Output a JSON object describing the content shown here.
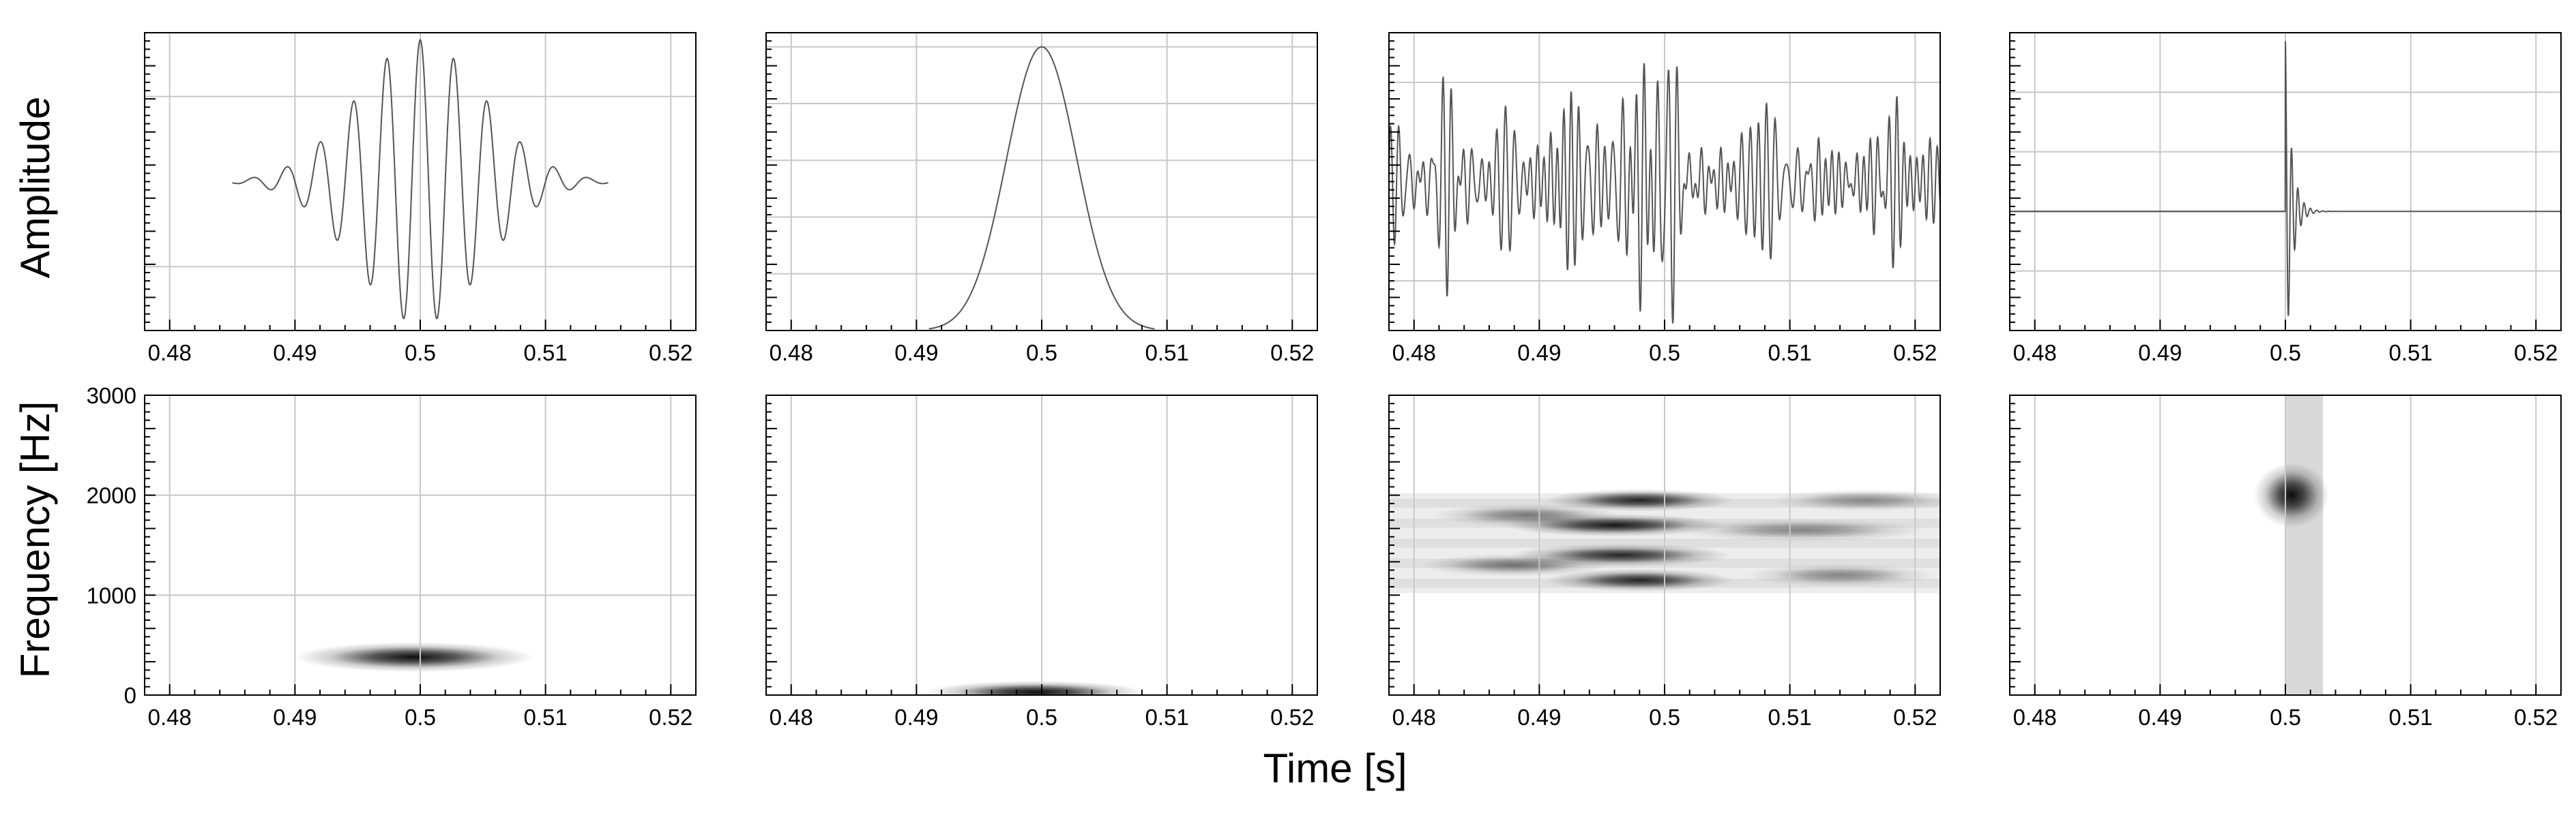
{
  "figure": {
    "ylabel_top": "Amplitude",
    "ylabel_bottom": "Frequency [Hz]",
    "xlabel": "Time [s]"
  },
  "chart_data": [
    {
      "type": "line",
      "row": "top",
      "panel": 1,
      "signal": "gabor",
      "xlabel": "",
      "ylabel": "Amplitude",
      "xlim": [
        0.478,
        0.522
      ],
      "ylim": [
        -1.05,
        1.05
      ],
      "xticks": [
        0.48,
        0.49,
        0.5,
        0.51,
        0.52
      ],
      "xtick_labels": [
        "0.48",
        "0.49",
        "0.5",
        "0.51",
        "0.52"
      ],
      "gridlines_y": [
        -0.6,
        0.6
      ],
      "params": {
        "center": 0.5,
        "sigma": 0.005,
        "frequency_hz": 375,
        "x_start": 0.485,
        "x_end": 0.515
      },
      "grid": true
    },
    {
      "type": "line",
      "row": "top",
      "panel": 2,
      "signal": "gaussian",
      "xlabel": "",
      "ylabel": "",
      "xlim": [
        0.478,
        0.522
      ],
      "ylim": [
        0,
        1.05
      ],
      "xticks": [
        0.48,
        0.49,
        0.5,
        0.51,
        0.52
      ],
      "xtick_labels": [
        "0.48",
        "0.49",
        "0.5",
        "0.51",
        "0.52"
      ],
      "gridlines_y": [
        0.2,
        0.4,
        0.6,
        0.8,
        1.0
      ],
      "params": {
        "center": 0.5,
        "sigma": 0.0028,
        "x_start": 0.491,
        "x_end": 0.509
      },
      "grid": true
    },
    {
      "type": "line",
      "row": "top",
      "panel": 3,
      "signal": "bandlimited_noise",
      "xlabel": "",
      "ylabel": "",
      "xlim": [
        0.478,
        0.522
      ],
      "ylim": [
        -1.05,
        1.05
      ],
      "xticks": [
        0.48,
        0.49,
        0.5,
        0.51,
        0.52
      ],
      "xtick_labels": [
        "0.48",
        "0.49",
        "0.5",
        "0.51",
        "0.52"
      ],
      "gridlines_y": [
        -0.7,
        0.7
      ],
      "params": {
        "band_hz": [
          1000,
          2000
        ],
        "x_start": 0.478,
        "x_end": 0.522
      },
      "grid": true
    },
    {
      "type": "line",
      "row": "top",
      "panel": 4,
      "signal": "impulse_response",
      "xlabel": "",
      "ylabel": "",
      "xlim": [
        0.478,
        0.522
      ],
      "ylim": [
        -0.7,
        1.05
      ],
      "xticks": [
        0.48,
        0.49,
        0.5,
        0.51,
        0.52
      ],
      "xtick_labels": [
        "0.48",
        "0.49",
        "0.5",
        "0.51",
        "0.52"
      ],
      "gridlines_y": [
        -0.35,
        0.35,
        0.7
      ],
      "params": {
        "onset": 0.5,
        "frequency_hz": 2000,
        "decay_s": 0.0005,
        "x_start": 0.478,
        "x_end": 0.522
      },
      "grid": true
    },
    {
      "type": "heatmap",
      "row": "bottom",
      "panel": 1,
      "xlabel": "",
      "ylabel": "Frequency [Hz]",
      "xlim": [
        0.478,
        0.522
      ],
      "ylim": [
        0,
        3000
      ],
      "xticks": [
        0.48,
        0.49,
        0.5,
        0.51,
        0.52
      ],
      "xtick_labels": [
        "0.48",
        "0.49",
        "0.5",
        "0.51",
        "0.52"
      ],
      "yticks": [
        0,
        1000,
        2000,
        3000
      ],
      "ytick_labels": [
        "0",
        "1000",
        "2000",
        "3000"
      ],
      "blobs": [
        {
          "t": 0.4995,
          "f": 380,
          "sigma_t": 0.0038,
          "sigma_f": 60,
          "intensity": 0.95
        }
      ],
      "grid": true
    },
    {
      "type": "heatmap",
      "row": "bottom",
      "panel": 2,
      "xlabel": "",
      "ylabel": "",
      "xlim": [
        0.478,
        0.522
      ],
      "ylim": [
        0,
        3000
      ],
      "xticks": [
        0.48,
        0.49,
        0.5,
        0.51,
        0.52
      ],
      "xtick_labels": [
        "0.48",
        "0.49",
        "0.5",
        "0.51",
        "0.52"
      ],
      "blobs": [
        {
          "t": 0.4995,
          "f": 30,
          "sigma_t": 0.0035,
          "sigma_f": 45,
          "intensity": 0.95
        }
      ],
      "grid": true
    },
    {
      "type": "heatmap",
      "row": "bottom",
      "panel": 3,
      "xlabel": "",
      "ylabel": "",
      "xlim": [
        0.478,
        0.522
      ],
      "ylim": [
        0,
        3000
      ],
      "xticks": [
        0.48,
        0.49,
        0.5,
        0.51,
        0.52
      ],
      "xtick_labels": [
        "0.48",
        "0.49",
        "0.5",
        "0.51",
        "0.52"
      ],
      "band_hz": [
        1020,
        2020
      ],
      "blobs": [
        {
          "t": 0.498,
          "f": 1950,
          "sigma_t": 0.003,
          "sigma_f": 45,
          "intensity": 0.85
        },
        {
          "t": 0.496,
          "f": 1700,
          "sigma_t": 0.0035,
          "sigma_f": 45,
          "intensity": 0.9
        },
        {
          "t": 0.4965,
          "f": 1400,
          "sigma_t": 0.0035,
          "sigma_f": 45,
          "intensity": 0.85
        },
        {
          "t": 0.498,
          "f": 1150,
          "sigma_t": 0.003,
          "sigma_f": 45,
          "intensity": 0.85
        },
        {
          "t": 0.489,
          "f": 1800,
          "sigma_t": 0.003,
          "sigma_f": 45,
          "intensity": 0.5
        },
        {
          "t": 0.488,
          "f": 1300,
          "sigma_t": 0.003,
          "sigma_f": 45,
          "intensity": 0.5
        },
        {
          "t": 0.511,
          "f": 1650,
          "sigma_t": 0.004,
          "sigma_f": 45,
          "intensity": 0.45
        },
        {
          "t": 0.516,
          "f": 1950,
          "sigma_t": 0.003,
          "sigma_f": 45,
          "intensity": 0.4
        },
        {
          "t": 0.514,
          "f": 1200,
          "sigma_t": 0.003,
          "sigma_f": 45,
          "intensity": 0.45
        }
      ],
      "grid": true
    },
    {
      "type": "heatmap",
      "row": "bottom",
      "panel": 4,
      "xlabel": "",
      "ylabel": "",
      "xlim": [
        0.478,
        0.522
      ],
      "ylim": [
        0,
        3000
      ],
      "xticks": [
        0.48,
        0.49,
        0.5,
        0.51,
        0.52
      ],
      "xtick_labels": [
        "0.48",
        "0.49",
        "0.5",
        "0.51",
        "0.52"
      ],
      "blobs": [
        {
          "t": 0.5005,
          "f": 2000,
          "sigma_t": 0.0012,
          "sigma_f": 130,
          "intensity": 0.95
        }
      ],
      "band_column": {
        "t_start": 0.5,
        "t_end": 0.503,
        "intensity": 0.15
      },
      "grid": true
    }
  ]
}
